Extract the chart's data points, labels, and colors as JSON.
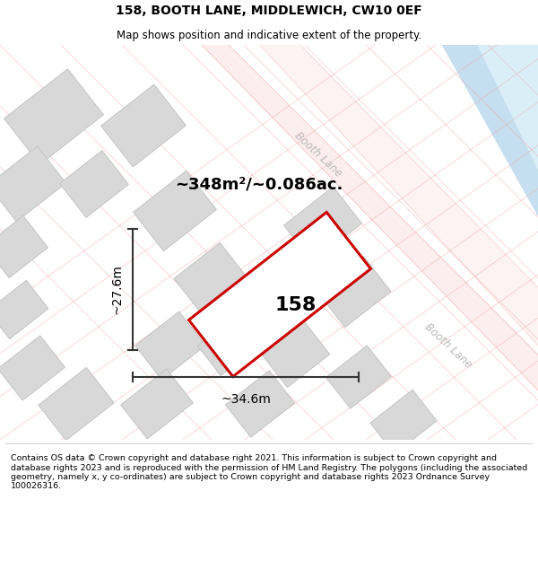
{
  "title": "158, BOOTH LANE, MIDDLEWICH, CW10 0EF",
  "subtitle": "Map shows position and indicative extent of the property.",
  "footer": "Contains OS data © Crown copyright and database right 2021. This information is subject to Crown copyright and database rights 2023 and is reproduced with the permission of HM Land Registry. The polygons (including the associated geometry, namely x, y co-ordinates) are subject to Crown copyright and database rights 2023 Ordnance Survey 100026316.",
  "area_label": "~348m²/~0.086ac.",
  "width_label": "~34.6m",
  "height_label": "~27.6m",
  "property_number": "158",
  "map_bg": "#ffffff",
  "road_color": "#f2a0a0",
  "road_fill": "#fce8e8",
  "building_color": "#d8d8d8",
  "building_edge": "#c0c0c0",
  "water_color": "#c5dff0",
  "water_edge": "#b0ccdd",
  "highlight_color": "#e8000000",
  "road_label_color": "#b8b8b8",
  "dim_color": "#333333",
  "title_fontsize": 10,
  "subtitle_fontsize": 8.5,
  "footer_fontsize": 6.8,
  "area_fontsize": 13,
  "label_fontsize": 10,
  "number_fontsize": 16
}
